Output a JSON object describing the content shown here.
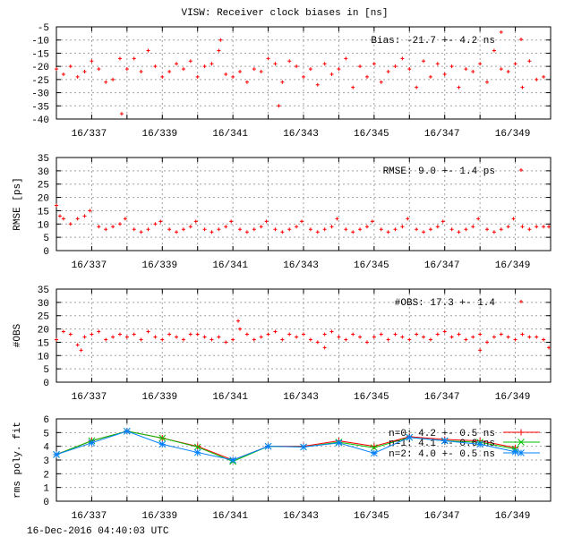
{
  "title": "VISW: Receiver clock biases in [ns]",
  "footer": "16-Dec-2016 04:40:03 UTC",
  "chart_data": [
    {
      "type": "scatter",
      "ylabel": "",
      "xlim": [
        336,
        350
      ],
      "ylim": [
        -40,
        -5
      ],
      "yticks": [
        -5,
        -10,
        -15,
        -20,
        -25,
        -30,
        -35,
        -40
      ],
      "xticks": [
        337,
        339,
        341,
        343,
        345,
        347,
        349
      ],
      "xtick_labels": [
        "16/337",
        "16/339",
        "16/341",
        "16/343",
        "16/345",
        "16/347",
        "16/349"
      ],
      "grid": true,
      "legend_placement": "top-right",
      "color": "#ff0000",
      "series": [
        {
          "name": "Bias: -21.7 +-  4.2 ns",
          "x": [
            336.0,
            336.2,
            336.4,
            336.6,
            336.8,
            337.0,
            337.2,
            337.4,
            337.6,
            337.8,
            338.0,
            338.2,
            338.4,
            338.6,
            338.8,
            339.0,
            339.2,
            339.4,
            339.6,
            339.8,
            340.0,
            340.2,
            340.4,
            340.6,
            340.8,
            341.0,
            341.2,
            341.4,
            341.6,
            341.8,
            342.0,
            342.2,
            342.4,
            342.6,
            342.8,
            343.0,
            343.2,
            343.4,
            343.6,
            343.8,
            344.0,
            344.2,
            344.4,
            344.6,
            344.8,
            345.0,
            345.2,
            345.4,
            345.6,
            345.8,
            346.0,
            346.2,
            346.4,
            346.6,
            346.8,
            347.0,
            347.2,
            347.4,
            347.6,
            347.8,
            348.0,
            348.2,
            348.4,
            348.6,
            348.8,
            349.0,
            349.2,
            349.4,
            349.6,
            349.8,
            337.85,
            340.65,
            342.3,
            348.6
          ],
          "y": [
            -21,
            -23,
            -20,
            -24,
            -22,
            -18,
            -21,
            -26,
            -25,
            -17,
            -21,
            -17,
            -22,
            -14,
            -20,
            -24,
            -22,
            -19,
            -21,
            -18,
            -24,
            -20,
            -19,
            -14,
            -23,
            -24,
            -22,
            -26,
            -21,
            -22,
            -17,
            -19,
            -26,
            -18,
            -20,
            -24,
            -21,
            -27,
            -19,
            -23,
            -21,
            -17,
            -28,
            -20,
            -24,
            -19,
            -26,
            -22,
            -20,
            -17,
            -21,
            -28,
            -18,
            -24,
            -19,
            -23,
            -20,
            -28,
            -21,
            -22,
            -19,
            -26,
            -14,
            -21,
            -22,
            -19,
            -28,
            -18,
            -25,
            -24,
            -38,
            -10,
            -35,
            -7
          ]
        }
      ]
    },
    {
      "type": "scatter",
      "ylabel": "RMSE [ps]",
      "xlim": [
        336,
        350
      ],
      "ylim": [
        0,
        35
      ],
      "yticks": [
        0,
        5,
        10,
        15,
        20,
        25,
        30,
        35
      ],
      "xticks": [
        337,
        339,
        341,
        343,
        345,
        347,
        349
      ],
      "xtick_labels": [
        "16/337",
        "16/339",
        "16/341",
        "16/343",
        "16/345",
        "16/347",
        "16/349"
      ],
      "grid": true,
      "legend_placement": "top-right",
      "color": "#ff0000",
      "series": [
        {
          "name": "RMSE: 9.0 +-  1.4 ps",
          "x": [
            336.0,
            336.1,
            336.2,
            336.4,
            336.6,
            336.8,
            336.95,
            337.2,
            337.4,
            337.6,
            337.8,
            337.95,
            338.2,
            338.4,
            338.6,
            338.8,
            338.95,
            339.2,
            339.4,
            339.6,
            339.8,
            339.95,
            340.2,
            340.4,
            340.6,
            340.8,
            340.95,
            341.2,
            341.4,
            341.6,
            341.8,
            341.95,
            342.2,
            342.4,
            342.6,
            342.8,
            342.95,
            343.2,
            343.4,
            343.6,
            343.8,
            343.95,
            344.2,
            344.4,
            344.6,
            344.8,
            344.95,
            345.2,
            345.4,
            345.6,
            345.8,
            345.95,
            346.2,
            346.4,
            346.6,
            346.8,
            346.95,
            347.2,
            347.4,
            347.6,
            347.8,
            347.95,
            348.2,
            348.4,
            348.6,
            348.8,
            348.95,
            349.2,
            349.4,
            349.6,
            349.8,
            349.95
          ],
          "y": [
            17,
            13,
            12,
            10,
            12,
            13,
            15,
            9,
            8,
            9,
            10,
            12,
            8,
            7,
            8,
            10,
            11,
            8,
            7,
            8,
            9,
            11,
            8,
            7,
            8,
            9,
            11,
            8,
            7,
            8,
            9,
            11,
            8,
            7,
            8,
            9,
            11,
            8,
            7,
            8,
            9,
            12,
            8,
            7,
            8,
            9,
            11,
            8,
            7,
            8,
            9,
            12,
            8,
            7,
            8,
            9,
            11,
            8,
            7,
            8,
            9,
            12,
            8,
            7,
            8,
            9,
            12,
            9,
            8,
            9,
            9,
            9
          ]
        }
      ]
    },
    {
      "type": "scatter",
      "ylabel": "#OBS",
      "xlim": [
        336,
        350
      ],
      "ylim": [
        0,
        35
      ],
      "yticks": [
        0,
        5,
        10,
        15,
        20,
        25,
        30,
        35
      ],
      "xticks": [
        337,
        339,
        341,
        343,
        345,
        347,
        349
      ],
      "xtick_labels": [
        "16/337",
        "16/339",
        "16/341",
        "16/343",
        "16/345",
        "16/347",
        "16/349"
      ],
      "grid": true,
      "legend_placement": "top-right",
      "color": "#ff0000",
      "series": [
        {
          "name": "#OBS: 17.3 +-  1.4",
          "x": [
            336.0,
            336.2,
            336.4,
            336.6,
            336.8,
            337.0,
            337.2,
            337.4,
            337.6,
            337.8,
            338.0,
            338.2,
            338.4,
            338.6,
            338.8,
            339.0,
            339.2,
            339.4,
            339.6,
            339.8,
            340.0,
            340.2,
            340.4,
            340.6,
            340.8,
            341.0,
            341.2,
            341.4,
            341.6,
            341.8,
            342.0,
            342.2,
            342.4,
            342.6,
            342.8,
            343.0,
            343.2,
            343.4,
            343.6,
            343.8,
            344.0,
            344.2,
            344.4,
            344.6,
            344.8,
            345.0,
            345.2,
            345.4,
            345.6,
            345.8,
            346.0,
            346.2,
            346.4,
            346.6,
            346.8,
            347.0,
            347.2,
            347.4,
            347.6,
            347.8,
            348.0,
            348.2,
            348.4,
            348.6,
            348.8,
            349.0,
            349.2,
            349.4,
            349.6,
            349.8,
            336.7,
            341.15,
            343.6,
            348.0,
            349.95
          ],
          "y": [
            16,
            19,
            18,
            14,
            17,
            18,
            19,
            16,
            17,
            18,
            17,
            18,
            16,
            19,
            17,
            16,
            18,
            17,
            16,
            18,
            18,
            17,
            16,
            17,
            15,
            16,
            20,
            18,
            16,
            17,
            18,
            19,
            16,
            18,
            17,
            18,
            16,
            15,
            18,
            19,
            17,
            16,
            18,
            17,
            15,
            17,
            18,
            16,
            18,
            17,
            16,
            18,
            17,
            16,
            18,
            19,
            17,
            18,
            16,
            17,
            18,
            15,
            17,
            18,
            17,
            16,
            18,
            17,
            17,
            16,
            12,
            23,
            13,
            12,
            13
          ]
        }
      ]
    },
    {
      "type": "line",
      "ylabel": "rms poly. fit",
      "xlim": [
        336,
        350
      ],
      "ylim": [
        0,
        6
      ],
      "yticks": [
        0,
        1,
        2,
        3,
        4,
        5,
        6
      ],
      "xticks": [
        337,
        339,
        341,
        343,
        345,
        347,
        349
      ],
      "xtick_labels": [
        "16/337",
        "16/339",
        "16/341",
        "16/343",
        "16/345",
        "16/347",
        "16/349"
      ],
      "grid": true,
      "legend_placement": "top-right",
      "x": [
        336,
        337,
        338,
        339,
        340,
        341,
        342,
        343,
        344,
        345,
        346,
        347,
        348,
        349
      ],
      "series": [
        {
          "name": "n=0: 4.2 +- 0.5 ns",
          "color": "#ff0000",
          "marker": "plus",
          "values": [
            3.4,
            4.4,
            5.1,
            4.6,
            4.0,
            3.0,
            4.0,
            4.0,
            4.4,
            4.0,
            4.7,
            4.5,
            4.4,
            3.9
          ]
        },
        {
          "name": "n=1: 4.1 +- 0.6 ns",
          "color": "#00c000",
          "marker": "cross",
          "values": [
            3.4,
            4.4,
            5.1,
            4.6,
            3.95,
            2.9,
            4.0,
            3.95,
            4.3,
            3.9,
            4.65,
            4.4,
            4.3,
            3.8
          ]
        },
        {
          "name": "n=2: 4.0 +- 0.5 ns",
          "color": "#0080ff",
          "marker": "star",
          "values": [
            3.4,
            4.25,
            5.1,
            4.15,
            3.55,
            3.0,
            4.0,
            3.95,
            4.25,
            3.5,
            4.65,
            4.4,
            4.15,
            3.6
          ]
        }
      ]
    }
  ]
}
